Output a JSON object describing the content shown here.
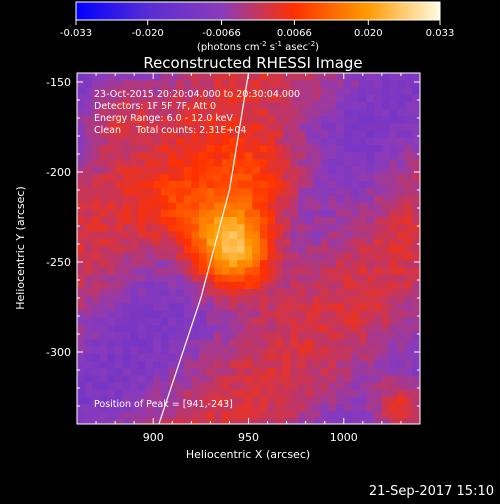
{
  "chart_data": {
    "type": "heatmap",
    "title": "Reconstructed RHESSI Image",
    "xlabel": "Heliocentric X (arcsec)",
    "ylabel": "Heliocentric Y (arcsec)",
    "x_ticks": [
      "900",
      "950",
      "1000"
    ],
    "y_ticks": [
      "-150",
      "-200",
      "-250",
      "-300"
    ],
    "xlim": [
      860,
      1040
    ],
    "ylim": [
      -340,
      -145
    ],
    "colorbar": {
      "min": -0.033,
      "max": 0.033,
      "tick_labels": [
        "-0.033",
        "-0.020",
        "-0.0066",
        "0.0066",
        "0.020",
        "0.033"
      ],
      "unit_label": "(photons cm",
      "unit_parts": [
        "-2",
        " s",
        "-1",
        " asec",
        "-2",
        ")"
      ]
    },
    "annotations": [
      "23-Oct-2015 20:20:04.000  to  20:30:04.000",
      "Detectors: 1F 5F 7F, Att 0",
      "Energy Range: 6.0 - 12.0 keV",
      "Clean     Total counts: 2.31E+04"
    ],
    "peak": {
      "label": "Position of Peak = [941,-243]",
      "x": 941,
      "y": -243,
      "value": 0.033,
      "sigma_x": 15,
      "sigma_y": 17
    },
    "secondary_emission": [
      {
        "x": 955,
        "y": -205,
        "value": 0.014,
        "sigma": 20
      },
      {
        "x": 915,
        "y": -220,
        "value": 0.008,
        "sigma": 15
      },
      {
        "x": 1030,
        "y": -330,
        "value": 0.014,
        "sigma": 10
      },
      {
        "x": 880,
        "y": -165,
        "value": 0.007,
        "sigma": 12
      }
    ],
    "limb_curve": [
      [
        903,
        -340
      ],
      [
        925,
        -270
      ],
      [
        940,
        -210
      ],
      [
        950,
        -145
      ]
    ],
    "colormap": [
      "#0000ff",
      "#5a2dd4",
      "#8a3bbb",
      "#ff3000",
      "#ff9a00",
      "#fffce0"
    ]
  },
  "footer": {
    "timestamp": "21-Sep-2017 15:10"
  }
}
